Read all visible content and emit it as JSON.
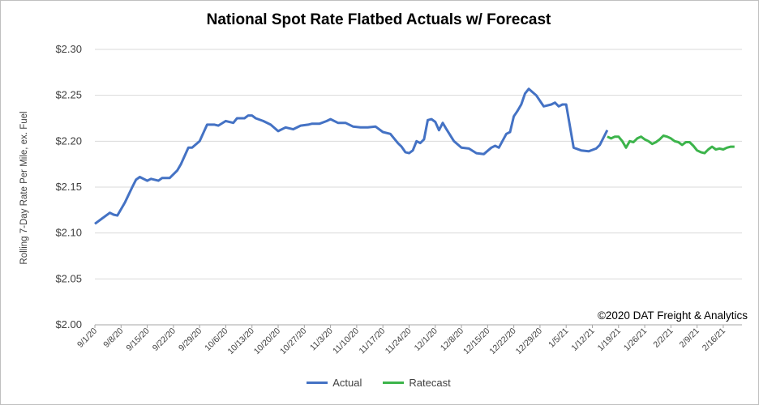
{
  "chart_data": {
    "type": "line",
    "title": "National Spot Rate Flatbed Actuals w/ Forecast",
    "ylabel": "Rolling 7-Day Rate Per Mile, ex. Fuel",
    "xlabel": "",
    "ylim": [
      2.0,
      2.3
    ],
    "yticks": [
      "$2.00",
      "$2.05",
      "$2.10",
      "$2.15",
      "$2.20",
      "$2.25",
      "$2.30"
    ],
    "grid": "horizontal",
    "legend_position": "bottom",
    "copyright": "©2020 DAT Freight & Analytics",
    "x_ticks": [
      "9/1/20",
      "9/8/20",
      "9/15/20",
      "9/22/20",
      "9/29/20",
      "10/6/20",
      "10/13/20",
      "10/20/20",
      "10/27/20",
      "11/3/20",
      "11/10/20",
      "11/17/20",
      "11/24/20",
      "12/1/20",
      "12/8/20",
      "12/15/20",
      "12/22/20",
      "12/29/20",
      "1/5/21",
      "1/12/21",
      "1/19/21",
      "1/26/21",
      "2/2/21",
      "2/9/21",
      "2/16/21"
    ],
    "series": [
      {
        "name": "Actual",
        "color": "#4472c4",
        "x": [
          "2020-09-01",
          "2020-09-03",
          "2020-09-05",
          "2020-09-06",
          "2020-09-07",
          "2020-09-09",
          "2020-09-11",
          "2020-09-12",
          "2020-09-13",
          "2020-09-15",
          "2020-09-16",
          "2020-09-18",
          "2020-09-19",
          "2020-09-21",
          "2020-09-23",
          "2020-09-24",
          "2020-09-26",
          "2020-09-27",
          "2020-09-29",
          "2020-10-01",
          "2020-10-03",
          "2020-10-04",
          "2020-10-06",
          "2020-10-08",
          "2020-10-09",
          "2020-10-11",
          "2020-10-12",
          "2020-10-13",
          "2020-10-14",
          "2020-10-16",
          "2020-10-18",
          "2020-10-20",
          "2020-10-22",
          "2020-10-24",
          "2020-10-26",
          "2020-10-28",
          "2020-10-29",
          "2020-10-31",
          "2020-11-02",
          "2020-11-03",
          "2020-11-05",
          "2020-11-07",
          "2020-11-09",
          "2020-11-11",
          "2020-11-13",
          "2020-11-15",
          "2020-11-17",
          "2020-11-19",
          "2020-11-21",
          "2020-11-22",
          "2020-11-23",
          "2020-11-24",
          "2020-11-25",
          "2020-11-26",
          "2020-11-27",
          "2020-11-28",
          "2020-11-29",
          "2020-11-30",
          "2020-12-01",
          "2020-12-02",
          "2020-12-03",
          "2020-12-04",
          "2020-12-06",
          "2020-12-08",
          "2020-12-10",
          "2020-12-12",
          "2020-12-14",
          "2020-12-16",
          "2020-12-17",
          "2020-12-18",
          "2020-12-20",
          "2020-12-21",
          "2020-12-22",
          "2020-12-23",
          "2020-12-24",
          "2020-12-25",
          "2020-12-26",
          "2020-12-28",
          "2020-12-30",
          "2021-01-01",
          "2021-01-02",
          "2021-01-03",
          "2021-01-04",
          "2021-01-05",
          "2021-01-07",
          "2021-01-09",
          "2021-01-11",
          "2021-01-13",
          "2021-01-14",
          "2021-01-16"
        ],
        "values": [
          2.11,
          2.116,
          2.122,
          2.12,
          2.119,
          2.133,
          2.15,
          2.158,
          2.161,
          2.157,
          2.159,
          2.157,
          2.16,
          2.16,
          2.168,
          2.175,
          2.193,
          2.193,
          2.2,
          2.218,
          2.218,
          2.217,
          2.222,
          2.22,
          2.225,
          2.225,
          2.228,
          2.228,
          2.225,
          2.222,
          2.218,
          2.211,
          2.215,
          2.213,
          2.217,
          2.218,
          2.219,
          2.219,
          2.222,
          2.224,
          2.22,
          2.22,
          2.216,
          2.215,
          2.215,
          2.216,
          2.21,
          2.208,
          2.198,
          2.194,
          2.188,
          2.187,
          2.19,
          2.2,
          2.198,
          2.202,
          2.223,
          2.224,
          2.221,
          2.212,
          2.22,
          2.213,
          2.2,
          2.193,
          2.192,
          2.187,
          2.186,
          2.193,
          2.195,
          2.193,
          2.208,
          2.21,
          2.227,
          2.233,
          2.24,
          2.252,
          2.257,
          2.25,
          2.238,
          2.24,
          2.242,
          2.238,
          2.24,
          2.24,
          2.193,
          2.19,
          2.189,
          2.192,
          2.196,
          2.212
        ],
        "values_note": ""
      },
      {
        "name": "Ratecast",
        "color": "#3cb44b",
        "x": [
          "2021-01-16",
          "2021-01-17",
          "2021-01-18",
          "2021-01-19",
          "2021-01-20",
          "2021-01-21",
          "2021-01-22",
          "2021-01-23",
          "2021-01-24",
          "2021-01-25",
          "2021-01-26",
          "2021-01-27",
          "2021-01-28",
          "2021-01-29",
          "2021-01-30",
          "2021-01-31",
          "2021-02-01",
          "2021-02-02",
          "2021-02-03",
          "2021-02-04",
          "2021-02-05",
          "2021-02-06",
          "2021-02-07",
          "2021-02-08",
          "2021-02-09",
          "2021-02-10",
          "2021-02-11",
          "2021-02-12",
          "2021-02-13",
          "2021-02-14",
          "2021-02-15",
          "2021-02-16",
          "2021-02-17",
          "2021-02-18",
          "2021-02-19"
        ],
        "values": [
          2.205,
          2.203,
          2.205,
          2.205,
          2.2,
          2.193,
          2.2,
          2.199,
          2.203,
          2.205,
          2.202,
          2.2,
          2.197,
          2.199,
          2.202,
          2.206,
          2.205,
          2.203,
          2.2,
          2.199,
          2.196,
          2.199,
          2.199,
          2.195,
          2.19,
          2.188,
          2.187,
          2.191,
          2.194,
          2.191,
          2.192,
          2.191,
          2.193,
          2.194,
          2.194
        ]
      }
    ]
  },
  "legend": {
    "actual": "Actual",
    "ratecast": "Ratecast"
  }
}
